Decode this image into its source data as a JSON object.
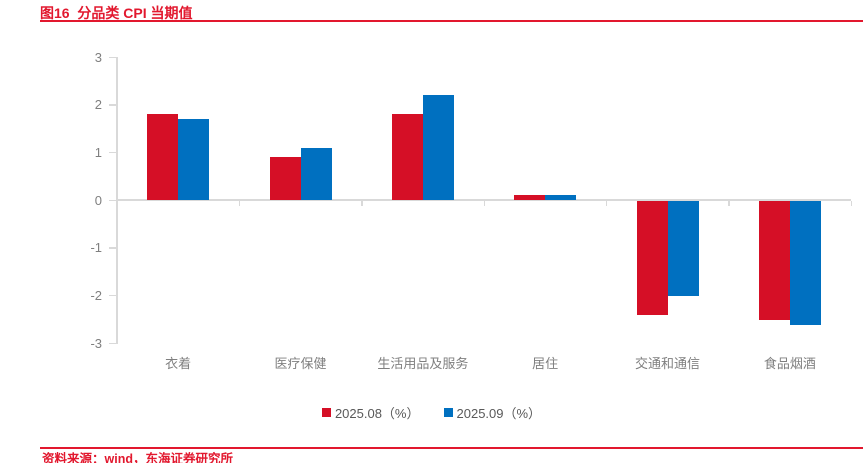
{
  "header": {
    "title": "图16  分品类 CPI 当期值"
  },
  "footer": {
    "source": "资料来源：wind，东海证券研究所"
  },
  "colors": {
    "accent_red": "#E2182E",
    "series_red": "#D50F26",
    "series_blue": "#0070C0",
    "axis_line": "#D9D9D9",
    "axis_text": "#7F7F7F",
    "legend_text": "#595959"
  },
  "chart_data": {
    "type": "bar",
    "title": "分品类 CPI 当期值",
    "categories": [
      "衣着",
      "医疗保健",
      "生活用品及服务",
      "居住",
      "交通和通信",
      "食品烟酒"
    ],
    "series": [
      {
        "name": "2025.08（%）",
        "color_key": "series_red",
        "values": [
          1.8,
          0.9,
          1.8,
          0.1,
          -2.4,
          -2.5
        ]
      },
      {
        "name": "2025.09（%）",
        "color_key": "series_blue",
        "values": [
          1.7,
          1.1,
          2.2,
          0.1,
          -2.0,
          -2.6
        ]
      }
    ],
    "xlabel": "",
    "ylabel": "",
    "ylim": [
      -3,
      3
    ],
    "yticks": [
      3,
      2,
      1,
      0,
      -1,
      -2,
      -3
    ],
    "grid": false,
    "legend_position": "bottom"
  }
}
